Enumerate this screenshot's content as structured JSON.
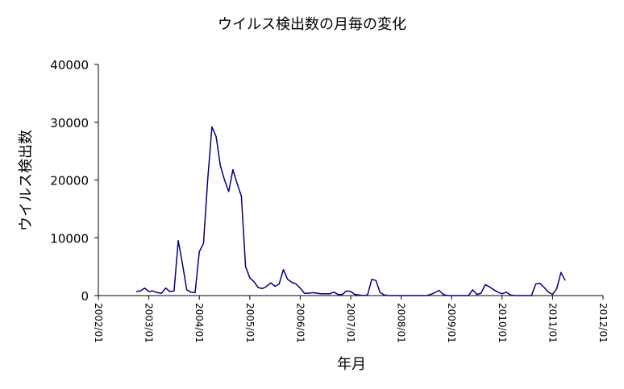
{
  "chart_data": {
    "type": "line",
    "title": "ウイルス検出数の月毎の変化",
    "xlabel": "年月",
    "ylabel": "ウイルス検出数",
    "ylim": [
      0,
      40000
    ],
    "yticks": [
      "0",
      "10000",
      "20000",
      "30000",
      "40000"
    ],
    "xticks": [
      "2002/01",
      "2003/01",
      "2004/01",
      "2005/01",
      "2006/01",
      "2007/01",
      "2008/01",
      "2009/01",
      "2010/01",
      "2011/01",
      "2012/01"
    ],
    "line_color": "#000080",
    "grid": false,
    "series": [
      {
        "x": [
          "2002/10",
          "2002/11",
          "2002/12",
          "2003/01",
          "2003/02",
          "2003/03",
          "2003/04",
          "2003/05",
          "2003/06",
          "2003/07",
          "2003/08",
          "2003/09",
          "2003/10",
          "2003/11",
          "2003/12",
          "2004/01",
          "2004/02",
          "2004/03",
          "2004/04",
          "2004/05",
          "2004/06",
          "2004/07",
          "2004/08",
          "2004/09",
          "2004/10",
          "2004/11",
          "2004/12",
          "2005/01",
          "2005/02",
          "2005/03",
          "2005/04",
          "2005/05",
          "2005/06",
          "2005/07",
          "2005/08",
          "2005/09",
          "2005/10",
          "2005/11",
          "2005/12",
          "2006/01",
          "2006/02",
          "2006/03",
          "2006/04",
          "2006/05",
          "2006/06",
          "2006/07",
          "2006/08",
          "2006/09",
          "2006/10",
          "2006/11",
          "2006/12",
          "2007/01",
          "2007/02",
          "2007/03",
          "2007/04",
          "2007/05",
          "2007/06",
          "2007/07",
          "2007/08",
          "2007/09",
          "2007/10",
          "2007/11",
          "2007/12",
          "2008/01",
          "2008/02",
          "2008/03",
          "2008/04",
          "2008/05",
          "2008/06",
          "2008/07",
          "2008/08",
          "2008/09",
          "2008/10",
          "2008/11",
          "2008/12",
          "2009/01",
          "2009/02",
          "2009/03",
          "2009/04",
          "2009/05",
          "2009/06",
          "2009/07",
          "2009/08",
          "2009/09",
          "2009/10",
          "2009/11",
          "2009/12",
          "2010/01",
          "2010/02",
          "2010/03",
          "2010/04",
          "2010/05",
          "2010/06",
          "2010/07",
          "2010/08",
          "2010/09",
          "2010/10",
          "2010/11",
          "2010/12",
          "2011/01",
          "2011/02",
          "2011/03",
          "2011/04"
        ],
        "values": [
          700,
          800,
          1300,
          700,
          800,
          500,
          400,
          1300,
          700,
          800,
          9500,
          5500,
          1000,
          600,
          500,
          7600,
          9000,
          20000,
          29200,
          27500,
          22500,
          20000,
          18000,
          21800,
          19400,
          17200,
          5000,
          3100,
          2400,
          1400,
          1200,
          1600,
          2200,
          1600,
          2000,
          4500,
          2800,
          2300,
          2000,
          1300,
          400,
          400,
          500,
          400,
          300,
          300,
          300,
          600,
          200,
          200,
          800,
          700,
          200,
          100,
          0,
          100,
          2800,
          2600,
          500,
          100,
          0,
          0,
          0,
          0,
          0,
          0,
          0,
          0,
          0,
          0,
          200,
          500,
          900,
          200,
          0,
          0,
          0,
          0,
          0,
          0,
          1000,
          200,
          400,
          1900,
          1500,
          1000,
          600,
          300,
          600,
          100,
          0,
          0,
          0,
          0,
          0,
          2000,
          2100,
          1400,
          600,
          200,
          1200,
          4000,
          2600
        ]
      }
    ]
  }
}
